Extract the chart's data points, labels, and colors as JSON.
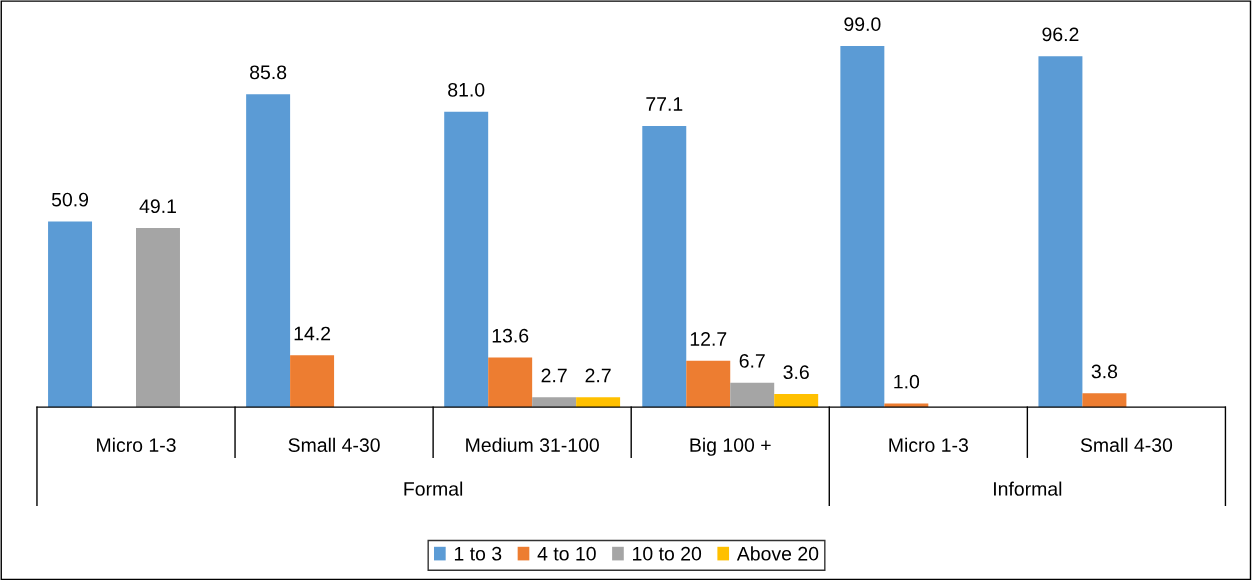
{
  "chart_data": {
    "type": "bar",
    "categories": [
      "Micro 1-3",
      "Small 4-30",
      "Medium 31-100",
      "Big 100 +",
      "Micro 1-3",
      "Small 4-30"
    ],
    "series": [
      {
        "name": "1 to 3",
        "color": "#5b9bd5",
        "values": [
          50.9,
          85.8,
          81.0,
          77.1,
          99.0,
          96.2
        ],
        "value_labels": [
          "50.9",
          "85.8",
          "81.0",
          "77.1",
          "99.0",
          "96.2"
        ]
      },
      {
        "name": "4 to 10",
        "color": "#ed7d31",
        "values": [
          null,
          14.2,
          13.6,
          12.7,
          1.0,
          3.8
        ],
        "value_labels": [
          null,
          "14.2",
          "13.6",
          "12.7",
          "1.0",
          "3.8"
        ]
      },
      {
        "name": "10 to 20",
        "color": "#a5a5a5",
        "values": [
          49.1,
          null,
          2.7,
          6.7,
          null,
          null
        ],
        "value_labels": [
          "49.1",
          null,
          "2.7",
          "6.7",
          null,
          null
        ]
      },
      {
        "name": "Above 20",
        "color": "#ffc000",
        "values": [
          null,
          null,
          2.7,
          3.6,
          null,
          null
        ],
        "value_labels": [
          null,
          null,
          "2.7",
          "3.6",
          null,
          null
        ]
      }
    ],
    "annotations": [
      "Formal",
      "Informal"
    ],
    "legend": "bottom",
    "grid": false
  }
}
